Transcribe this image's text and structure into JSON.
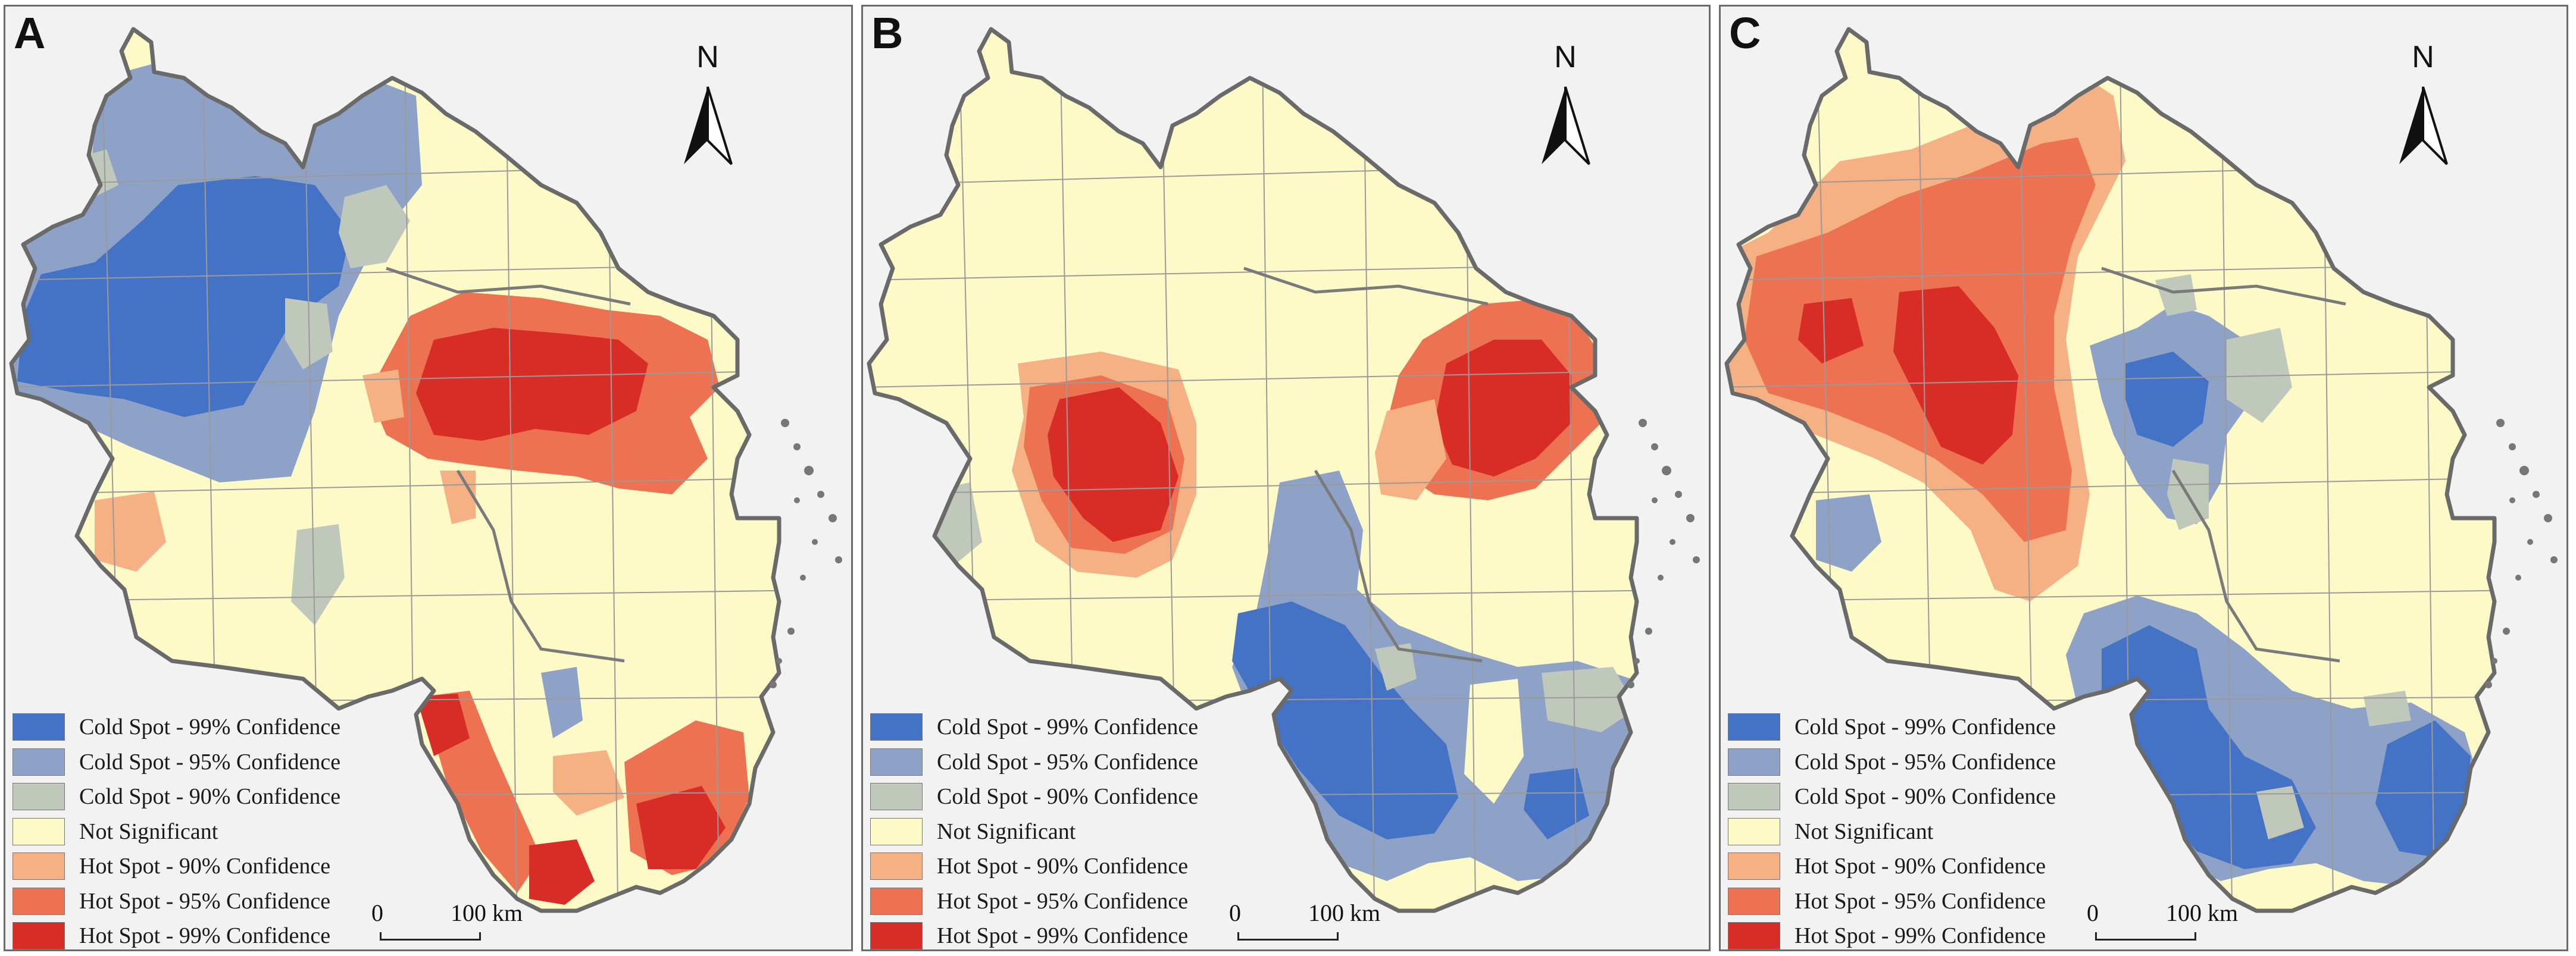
{
  "palette": {
    "cold99": "#4472c4",
    "cold95": "#8ea2c8",
    "cold90": "#bfc8ba",
    "ns": "#fdfac8",
    "hot90": "#f5b084",
    "hot95": "#ec7252",
    "hot99": "#d82d26"
  },
  "legend": [
    {
      "key": "cold99",
      "label": "Cold Spot - 99% Confidence"
    },
    {
      "key": "cold95",
      "label": "Cold Spot - 95% Confidence"
    },
    {
      "key": "cold90",
      "label": "Cold Spot - 90% Confidence"
    },
    {
      "key": "ns",
      "label": "Not Significant"
    },
    {
      "key": "hot90",
      "label": "Hot Spot - 90% Confidence"
    },
    {
      "key": "hot95",
      "label": "Hot Spot - 95% Confidence"
    },
    {
      "key": "hot99",
      "label": "Hot Spot - 99% Confidence"
    }
  ],
  "north_label": "N",
  "scale": {
    "zero": "0",
    "max": "100 km"
  },
  "panels": [
    {
      "letter": "A",
      "regions": [
        "cold99 cluster over northwest",
        "cold95 ring around northwest cluster",
        "cold90 patches north and center",
        "hot99 cluster over central-east coast",
        "hot95 ring around central-east cluster",
        "hot90 west patch",
        "hot99 and hot95 patches in far south"
      ]
    },
    {
      "letter": "B",
      "regions": [
        "hot99 cluster in west-center",
        "hot95 ring in west-center",
        "hot90 fringe in west-center",
        "cold90 west edge patch",
        "hot99 cluster on east coast",
        "hot95 ring on east coast",
        "hot90 patch west of east cluster",
        "cold99 cluster in southwest",
        "cold95 belt in south",
        "cold90 south patch"
      ]
    },
    {
      "letter": "C",
      "regions": [
        "hot99 core in northwest",
        "hot95 broad area in northwest",
        "hot90 fringe in north and west",
        "cold99 center patch",
        "cold95 center area",
        "cold90 center patches",
        "cold95 west patch",
        "cold99 southern cluster",
        "cold95 southern belt",
        "cold90 south patch"
      ]
    }
  ]
}
